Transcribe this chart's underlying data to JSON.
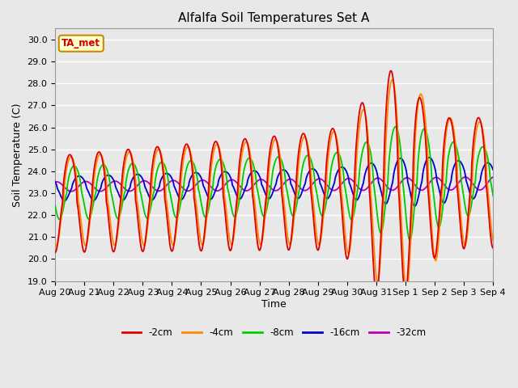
{
  "title": "Alfalfa Soil Temperatures Set A",
  "xlabel": "Time",
  "ylabel": "Soil Temperature (C)",
  "ylim": [
    19.0,
    30.5
  ],
  "yticks": [
    19.0,
    20.0,
    21.0,
    22.0,
    23.0,
    24.0,
    25.0,
    26.0,
    27.0,
    28.0,
    29.0,
    30.0
  ],
  "colors": {
    "-2cm": "#dd0000",
    "-4cm": "#ff8800",
    "-8cm": "#00cc00",
    "-16cm": "#0000cc",
    "-32cm": "#bb00bb"
  },
  "annotation_text": "TA_met",
  "background_color": "#e8e8e8",
  "grid_color": "#ffffff",
  "title_fontsize": 11,
  "label_fontsize": 9,
  "tick_fontsize": 8
}
